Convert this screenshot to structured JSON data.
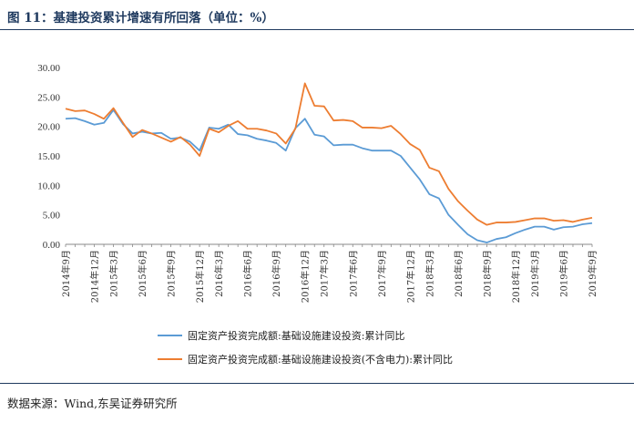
{
  "figure": {
    "title": "图 11：基建投资累计增速有所回落（单位：%）",
    "source": "数据来源：Wind,东吴证券研究所"
  },
  "chart_data": {
    "type": "line",
    "ylim": [
      0,
      30
    ],
    "yticks": [
      "0.00",
      "5.00",
      "10.00",
      "15.00",
      "20.00",
      "25.00",
      "30.00"
    ],
    "grid": false,
    "legend_position": "bottom",
    "x": [
      "2014年9月",
      "2014年10月",
      "2014年11月",
      "2014年12月",
      "2015年2月",
      "2015年3月",
      "2015年4月",
      "2015年5月",
      "2015年6月",
      "2015年7月",
      "2015年8月",
      "2015年9月",
      "2015年10月",
      "2015年11月",
      "2015年12月",
      "2016年2月",
      "2016年3月",
      "2016年4月",
      "2016年5月",
      "2016年6月",
      "2016年7月",
      "2016年8月",
      "2016年9月",
      "2016年10月",
      "2016年11月",
      "2016年12月",
      "2017年2月",
      "2017年3月",
      "2017年4月",
      "2017年5月",
      "2017年6月",
      "2017年7月",
      "2017年8月",
      "2017年9月",
      "2017年10月",
      "2017年11月",
      "2017年12月",
      "2018年2月",
      "2018年3月",
      "2018年4月",
      "2018年5月",
      "2018年6月",
      "2018年7月",
      "2018年8月",
      "2018年9月",
      "2018年10月",
      "2018年11月",
      "2018年12月",
      "2019年2月",
      "2019年3月",
      "2019年4月",
      "2019年5月",
      "2019年6月",
      "2019年7月",
      "2019年8月",
      "2019年9月"
    ],
    "xtick_labels": [
      "2014年9月",
      "2014年12月",
      "2015年3月",
      "2015年6月",
      "2015年9月",
      "2015年12月",
      "2016年3月",
      "2016年6月",
      "2016年9月",
      "2016年12月",
      "2017年3月",
      "2017年6月",
      "2017年9月",
      "2017年12月",
      "2018年3月",
      "2018年6月",
      "2018年9月",
      "2018年12月",
      "2019年3月",
      "2019年6月",
      "2019年9月"
    ],
    "xtick_indices": [
      0,
      3,
      5,
      8,
      11,
      14,
      16,
      19,
      22,
      25,
      27,
      30,
      33,
      36,
      38,
      41,
      44,
      47,
      49,
      52,
      55
    ],
    "series": [
      {
        "name": "固定资产投资完成额:基础设施建设投资:累计同比",
        "color": "#5b9bd5",
        "values": [
          21.3,
          21.4,
          20.9,
          20.3,
          20.6,
          22.8,
          20.4,
          18.8,
          19.1,
          18.8,
          18.9,
          17.9,
          18.1,
          17.4,
          15.9,
          19.8,
          19.6,
          20.3,
          18.7,
          18.5,
          17.9,
          17.6,
          17.2,
          15.9,
          19.7,
          21.3,
          18.6,
          18.3,
          16.8,
          16.9,
          16.9,
          16.3,
          15.9,
          15.9,
          15.9,
          15.0,
          13.0,
          11.0,
          8.5,
          7.8,
          5.0,
          3.3,
          1.7,
          0.7,
          0.3,
          0.9,
          1.2,
          1.9,
          2.5,
          3.0,
          3.0,
          2.5,
          2.9,
          3.0,
          3.4,
          3.6
        ]
      },
      {
        "name": "固定资产投资完成额:基础设施建设投资(不含电力):累计同比",
        "color": "#ed7d31",
        "values": [
          23.0,
          22.6,
          22.7,
          22.1,
          21.3,
          23.1,
          20.6,
          18.2,
          19.4,
          18.8,
          18.1,
          17.4,
          18.2,
          16.9,
          15.0,
          19.6,
          19.0,
          20.1,
          20.9,
          19.6,
          19.6,
          19.3,
          18.8,
          17.1,
          19.6,
          27.3,
          23.5,
          23.4,
          21.0,
          21.1,
          20.9,
          19.8,
          19.8,
          19.7,
          20.1,
          18.7,
          17.0,
          16.0,
          13.0,
          12.4,
          9.4,
          7.3,
          5.7,
          4.2,
          3.3,
          3.7,
          3.7,
          3.8,
          4.1,
          4.4,
          4.4,
          4.0,
          4.1,
          3.8,
          4.2,
          4.5
        ]
      }
    ]
  }
}
